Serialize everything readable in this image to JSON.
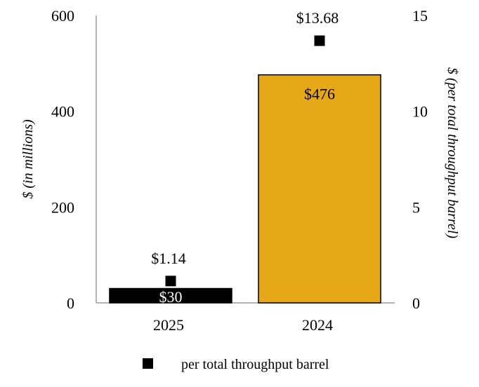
{
  "chart_data": {
    "type": "bar",
    "categories": [
      "2025",
      "2024"
    ],
    "series": [
      {
        "axis": "left",
        "kind": "bar",
        "values": [
          30,
          476
        ],
        "value_labels": [
          "$30",
          "$476"
        ],
        "colors": [
          "#000000",
          "#E6A817"
        ]
      },
      {
        "name": "per total throughput barrel",
        "axis": "right",
        "kind": "marker",
        "marker": "square",
        "values": [
          1.14,
          13.68
        ],
        "value_labels": [
          "$1.14",
          "$13.68"
        ],
        "color": "#000000"
      }
    ],
    "left_axis": {
      "label": "$ (in millions)",
      "ylim": [
        0,
        600
      ],
      "ticks": [
        "0",
        "200",
        "400",
        "600"
      ]
    },
    "right_axis": {
      "label": "$ (per total throughput barrel)",
      "ylim": [
        0,
        15
      ],
      "ticks": [
        "0",
        "5",
        "10",
        "15"
      ]
    },
    "grid": false,
    "legend": {
      "position": "bottom-center",
      "entries": [
        "per total throughput barrel"
      ]
    }
  }
}
